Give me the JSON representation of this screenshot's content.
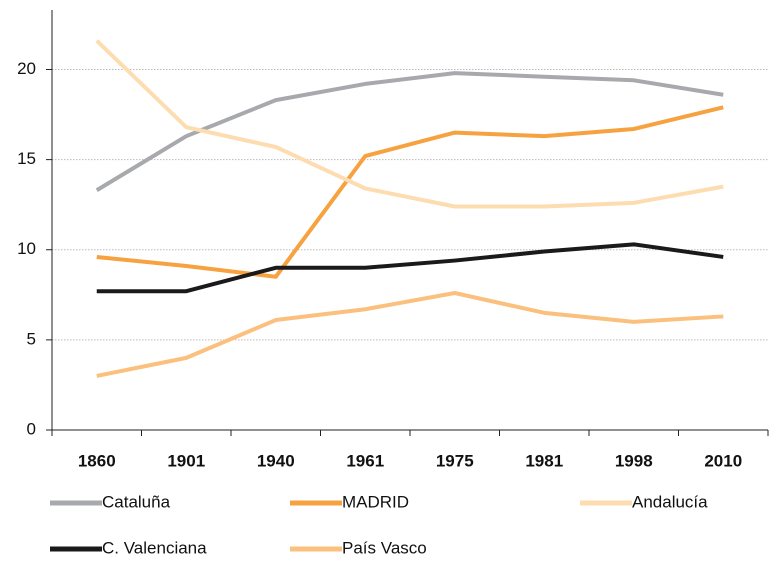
{
  "chart_data": {
    "type": "line",
    "categories": [
      "1860",
      "1901",
      "1940",
      "1961",
      "1975",
      "1981",
      "1998",
      "2010"
    ],
    "series": [
      {
        "name": "Cataluña",
        "color": "#a7a9ac",
        "values": [
          13.3,
          16.3,
          18.3,
          19.2,
          19.8,
          19.6,
          19.4,
          18.6
        ]
      },
      {
        "name": "MADRID",
        "color": "#f7a240",
        "values": [
          9.6,
          9.1,
          8.5,
          15.2,
          16.5,
          16.3,
          16.7,
          17.9
        ]
      },
      {
        "name": "Andalucía",
        "color": "#fddcb0",
        "values": [
          21.6,
          16.8,
          15.7,
          13.4,
          12.4,
          12.4,
          12.6,
          13.5
        ]
      },
      {
        "name": "C. Valenciana",
        "color": "#1a1a1a",
        "values": [
          7.7,
          7.7,
          9.0,
          9.0,
          9.4,
          9.9,
          10.3,
          9.6
        ]
      },
      {
        "name": "País Vasco",
        "color": "#fbc07e",
        "values": [
          3.0,
          4.0,
          6.1,
          6.7,
          7.6,
          6.5,
          6.0,
          6.3
        ]
      }
    ],
    "ylim": [
      0,
      23.3
    ],
    "yticks": [
      0,
      5,
      10,
      15,
      20
    ],
    "grid": true,
    "legend": "bottom"
  }
}
